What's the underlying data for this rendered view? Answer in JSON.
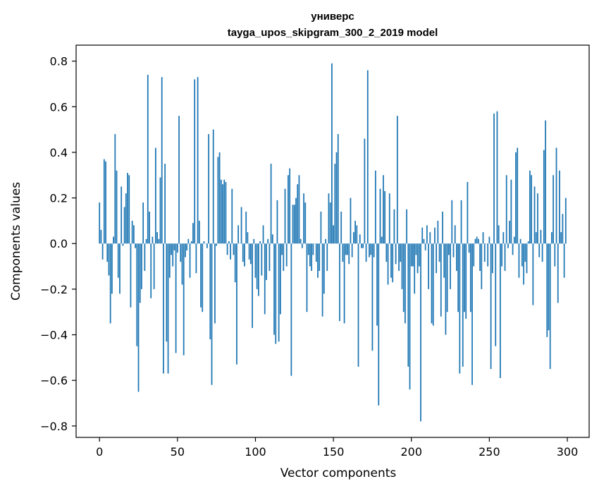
{
  "chart_data": {
    "type": "bar",
    "title": [
      "универс",
      "tayga_upos_skipgram_300_2_2019 model"
    ],
    "xlabel": "Vector components",
    "ylabel": "Components values",
    "xlim": [
      -15,
      314
    ],
    "ylim": [
      -0.85,
      0.87
    ],
    "xticks": [
      0,
      50,
      100,
      150,
      200,
      250,
      300
    ],
    "yticks": [
      -0.8,
      -0.6,
      -0.4,
      -0.2,
      0.0,
      0.2,
      0.4,
      0.6,
      0.8
    ],
    "ytick_labels": [
      "−0.8",
      "−0.6",
      "−0.4",
      "−0.2",
      "0.0",
      "0.2",
      "0.4",
      "0.6",
      "0.8"
    ],
    "grid": false,
    "color": "#1f77b4",
    "values": [
      0.18,
      0.06,
      -0.07,
      0.37,
      0.36,
      -0.08,
      -0.14,
      -0.35,
      -0.22,
      0.03,
      0.48,
      0.32,
      -0.15,
      -0.22,
      0.25,
      -0.01,
      0.16,
      0.22,
      0.31,
      0.3,
      -0.28,
      0.1,
      0.08,
      -0.02,
      -0.45,
      -0.65,
      -0.26,
      -0.2,
      0.18,
      -0.12,
      0.02,
      0.74,
      0.14,
      -0.24,
      0.03,
      -0.2,
      0.42,
      0.05,
      0.02,
      0.29,
      0.73,
      -0.57,
      0.35,
      -0.43,
      -0.57,
      -0.15,
      -0.05,
      -0.1,
      -0.03,
      -0.48,
      -0.04,
      0.56,
      -0.08,
      -0.18,
      -0.49,
      -0.06,
      -0.03,
      0.02,
      -0.15,
      0.01,
      0.09,
      0.72,
      -0.13,
      0.73,
      0.1,
      -0.28,
      -0.3,
      0.01,
      0.0,
      -0.02,
      0.48,
      -0.42,
      -0.62,
      0.5,
      -0.35,
      -0.01,
      0.38,
      0.4,
      0.28,
      0.26,
      0.28,
      0.27,
      -0.05,
      0.01,
      -0.07,
      0.24,
      -0.05,
      -0.17,
      -0.53,
      0.08,
      0.0,
      0.16,
      -0.08,
      -0.1,
      0.14,
      0.05,
      -0.07,
      -0.09,
      -0.37,
      0.02,
      -0.15,
      -0.2,
      -0.23,
      0.01,
      -0.14,
      0.08,
      -0.31,
      -0.16,
      0.02,
      -0.12,
      0.35,
      0.04,
      -0.4,
      -0.44,
      0.19,
      -0.43,
      -0.31,
      -0.05,
      -0.12,
      0.24,
      -0.1,
      0.3,
      0.33,
      -0.58,
      0.17,
      0.17,
      0.2,
      0.26,
      0.3,
      0.02,
      -0.02,
      0.22,
      0.18,
      -0.3,
      -0.05,
      -0.1,
      -0.12,
      -0.05,
      0.0,
      -0.08,
      -0.15,
      -0.12,
      0.14,
      -0.32,
      -0.22,
      0.02,
      -0.12,
      0.22,
      0.18,
      0.79,
      0.08,
      0.35,
      0.4,
      0.48,
      -0.34,
      0.14,
      -0.08,
      -0.35,
      -0.05,
      -0.05,
      -0.09,
      0.2,
      -0.06,
      0.05,
      0.1,
      0.08,
      -0.54,
      0.04,
      -0.02,
      -0.02,
      0.46,
      -0.08,
      0.76,
      -0.06,
      -0.05,
      -0.47,
      -0.06,
      0.32,
      -0.36,
      -0.71,
      0.24,
      0.03,
      0.3,
      0.23,
      -0.08,
      -0.18,
      0.22,
      -0.15,
      -0.17,
      0.15,
      -0.09,
      0.56,
      -0.12,
      -0.08,
      -0.2,
      -0.3,
      -0.35,
      0.15,
      -0.54,
      -0.64,
      -0.1,
      -0.1,
      -0.22,
      -0.05,
      -0.13,
      -0.1,
      -0.78,
      0.07,
      0.02,
      -0.03,
      0.08,
      -0.2,
      0.05,
      -0.35,
      -0.36,
      0.07,
      -0.13,
      0.1,
      -0.08,
      -0.32,
      0.14,
      -0.15,
      -0.4,
      -0.3,
      -0.05,
      -0.2,
      0.19,
      -0.06,
      0.08,
      -0.12,
      -0.3,
      -0.57,
      0.19,
      -0.54,
      -0.3,
      -0.33,
      0.27,
      -0.04,
      -0.3,
      -0.62,
      -0.1,
      0.02,
      0.03,
      0.02,
      -0.12,
      -0.2,
      0.05,
      -0.08,
      0.0,
      -0.1,
      0.03,
      -0.55,
      -0.13,
      0.57,
      -0.45,
      0.58,
      0.08,
      -0.59,
      -0.1,
      0.05,
      -0.12,
      0.3,
      -0.02,
      0.1,
      0.28,
      -0.05,
      0.03,
      0.4,
      0.42,
      -0.15,
      0.02,
      -0.1,
      -0.18,
      -0.08,
      -0.13,
      0.01,
      0.32,
      0.3,
      -0.27,
      0.25,
      0.05,
      0.22,
      -0.06,
      0.06,
      -0.08,
      0.41,
      0.54,
      -0.41,
      -0.38,
      -0.55,
      0.05,
      0.3,
      -0.1,
      0.42,
      -0.26,
      0.32,
      0.05,
      0.13,
      -0.15,
      0.2
    ]
  }
}
